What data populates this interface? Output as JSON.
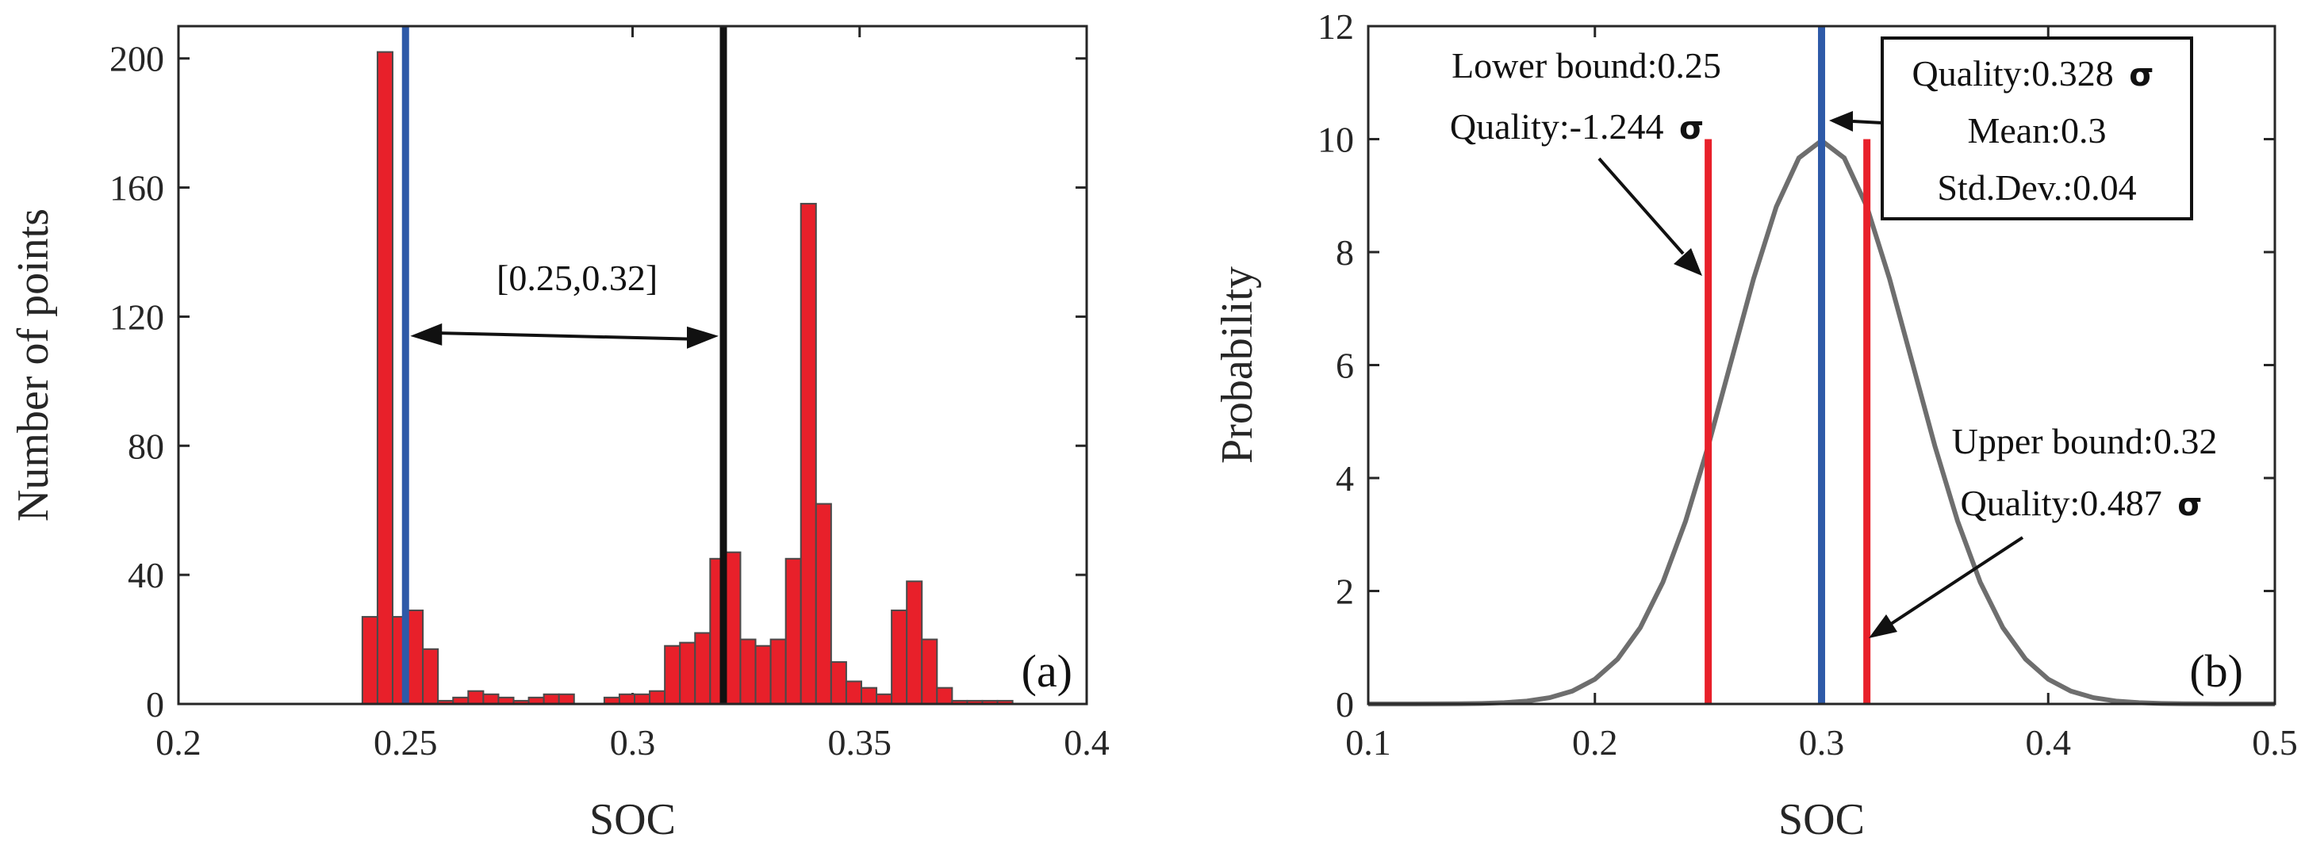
{
  "chart_data": [
    {
      "type": "bar",
      "panel_label": "(a)",
      "xlabel": "SOC",
      "ylabel": "Number of points",
      "xlim": [
        0.2,
        0.4
      ],
      "ylim": [
        0,
        210
      ],
      "xticks": [
        "0.2",
        "0.25",
        "0.3",
        "0.35",
        "0.4"
      ],
      "yticks": [
        "0",
        "40",
        "80",
        "120",
        "160",
        "200"
      ],
      "bin_width": 0.00333,
      "bin_start": 0.2405,
      "values": [
        27,
        202,
        27,
        29,
        17,
        1,
        2,
        4,
        3,
        2,
        1,
        2,
        3,
        3,
        0,
        0,
        2,
        3,
        3,
        4,
        18,
        19,
        22,
        45,
        47,
        20,
        18,
        20,
        45,
        155,
        62,
        13,
        7,
        5,
        3,
        29,
        38,
        20,
        5,
        1,
        1,
        1,
        1
      ],
      "bar_color": "#e8202a",
      "vertical_lines": [
        {
          "name": "lower",
          "x": 0.25,
          "color": "#2e5aa8"
        },
        {
          "name": "upper",
          "x": 0.32,
          "color": "#111111"
        }
      ],
      "interval_annotation": {
        "text": "[0.25,0.32]",
        "from": 0.25,
        "to": 0.32,
        "y": 114
      }
    },
    {
      "type": "line",
      "panel_label": "(b)",
      "xlabel": "SOC",
      "ylabel": "Probability",
      "xlim": [
        0.1,
        0.5
      ],
      "ylim": [
        0,
        12
      ],
      "xticks": [
        "0.1",
        "0.2",
        "0.3",
        "0.4",
        "0.5"
      ],
      "yticks": [
        "0",
        "2",
        "4",
        "6",
        "8",
        "10",
        "12"
      ],
      "distribution": {
        "mean": 0.3,
        "std": 0.04,
        "x_start": 0.1,
        "x_end": 0.5,
        "step": 0.01
      },
      "curve_color": "#6e6e6e",
      "vertical_lines": [
        {
          "name": "lower-bound",
          "x": 0.25,
          "y": 10,
          "color": "#e8202a"
        },
        {
          "name": "mean",
          "x": 0.3,
          "y": 12,
          "color": "#2e5aa8"
        },
        {
          "name": "upper-bound",
          "x": 0.32,
          "y": 10,
          "color": "#e8202a"
        }
      ],
      "annotations": {
        "lower_bound": "Lower bound:0.25",
        "lower_quality": "Quality:-1.244",
        "upper_bound": "Upper bound:0.32",
        "upper_quality": "Quality:0.487",
        "box_quality": "Quality:0.328",
        "box_mean": "Mean:0.3",
        "box_std": "Std.Dev.:0.04",
        "sigma": "σ"
      }
    }
  ]
}
